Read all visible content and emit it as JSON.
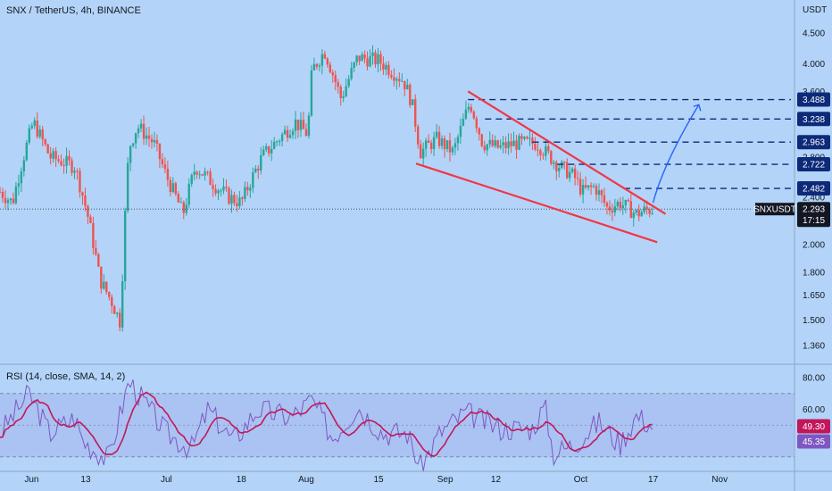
{
  "header": {
    "title": "SNX / TetherUS, 4h, BINANCE",
    "rsi_title": "RSI (14, close, SMA, 14, 2)"
  },
  "price_axis_unit": "USDT",
  "colors": {
    "background": "#b3d4f8",
    "up_candle": "#26a69a",
    "down_candle": "#ef5350",
    "wedge": "#f23645",
    "levels": "#0d2a7a",
    "projection": "#2962ff",
    "rsi_line": "#7e57c2",
    "rsi_ma": "#c2185b"
  },
  "chart_data": [
    {
      "type": "candlestick",
      "ylim": [
        1.3,
        4.8
      ],
      "y_scale": "log",
      "price_ticks": [
        "4.500",
        "4.000",
        "3.600",
        "3.200",
        "2.800",
        "2.400",
        "2.000",
        "1.800",
        "1.650",
        "1.500",
        "1.360"
      ],
      "time_ticks": [
        "Jun",
        "13",
        "Jul",
        "18",
        "Aug",
        "15",
        "Sep",
        "12",
        "Oct",
        "17",
        "Nov"
      ],
      "path_points": [
        {
          "t": 0,
          "p": 2.45
        },
        {
          "t": 0.015,
          "p": 2.35
        },
        {
          "t": 0.04,
          "p": 3.2
        },
        {
          "t": 0.06,
          "p": 2.8
        },
        {
          "t": 0.09,
          "p": 2.7
        },
        {
          "t": 0.105,
          "p": 2.25
        },
        {
          "t": 0.12,
          "p": 1.75
        },
        {
          "t": 0.135,
          "p": 1.6
        },
        {
          "t": 0.145,
          "p": 1.48
        },
        {
          "t": 0.155,
          "p": 2.9
        },
        {
          "t": 0.165,
          "p": 3.15
        },
        {
          "t": 0.185,
          "p": 2.95
        },
        {
          "t": 0.2,
          "p": 2.6
        },
        {
          "t": 0.22,
          "p": 2.25
        },
        {
          "t": 0.235,
          "p": 2.7
        },
        {
          "t": 0.26,
          "p": 2.5
        },
        {
          "t": 0.275,
          "p": 2.4
        },
        {
          "t": 0.29,
          "p": 2.35
        },
        {
          "t": 0.315,
          "p": 2.8
        },
        {
          "t": 0.335,
          "p": 3.0
        },
        {
          "t": 0.355,
          "p": 3.2
        },
        {
          "t": 0.37,
          "p": 3.05
        },
        {
          "t": 0.375,
          "p": 3.9
        },
        {
          "t": 0.39,
          "p": 4.2
        },
        {
          "t": 0.41,
          "p": 3.5
        },
        {
          "t": 0.43,
          "p": 4.1
        },
        {
          "t": 0.455,
          "p": 4.05
        },
        {
          "t": 0.47,
          "p": 3.9
        },
        {
          "t": 0.485,
          "p": 3.75
        },
        {
          "t": 0.495,
          "p": 3.45
        },
        {
          "t": 0.505,
          "p": 2.85
        },
        {
          "t": 0.525,
          "p": 3.0
        },
        {
          "t": 0.545,
          "p": 2.85
        },
        {
          "t": 0.565,
          "p": 3.45
        },
        {
          "t": 0.58,
          "p": 2.95
        },
        {
          "t": 0.6,
          "p": 2.9
        },
        {
          "t": 0.62,
          "p": 2.95
        },
        {
          "t": 0.645,
          "p": 2.95
        },
        {
          "t": 0.67,
          "p": 2.72
        },
        {
          "t": 0.69,
          "p": 2.6
        },
        {
          "t": 0.7,
          "p": 2.45
        },
        {
          "t": 0.715,
          "p": 2.5
        },
        {
          "t": 0.73,
          "p": 2.3
        },
        {
          "t": 0.745,
          "p": 2.35
        },
        {
          "t": 0.765,
          "p": 2.25
        },
        {
          "t": 0.775,
          "p": 2.28
        },
        {
          "t": 0.785,
          "p": 2.293
        }
      ],
      "levels": [
        3.488,
        3.238,
        2.963,
        2.722,
        2.482
      ],
      "level_labels": [
        "3.488",
        "3.238",
        "2.963",
        "2.722",
        "2.482"
      ],
      "last_price": {
        "symbol": "SNXUSDT",
        "value": "2.293",
        "countdown": "17:15"
      },
      "wedge_upper": [
        {
          "t": 0.5625,
          "p": 3.6
        },
        {
          "t": 0.8,
          "p": 2.25
        }
      ],
      "wedge_lower": [
        {
          "t": 0.5,
          "p": 2.73
        },
        {
          "t": 0.79,
          "p": 2.02
        }
      ],
      "projection": [
        {
          "t": 0.785,
          "p": 2.35
        },
        {
          "t": 0.84,
          "p": 3.42
        }
      ]
    },
    {
      "type": "line",
      "name": "RSI",
      "ylim": [
        20,
        85
      ],
      "tick_labels": [
        "80.00",
        "60.00",
        "40.00"
      ],
      "band": [
        30,
        70
      ],
      "midline": 50,
      "rsi_value": "49.30",
      "ma_value": "45.35",
      "rsi_points": [
        {
          "t": 0,
          "v": 45
        },
        {
          "t": 0.035,
          "v": 70
        },
        {
          "t": 0.06,
          "v": 45
        },
        {
          "t": 0.09,
          "v": 55
        },
        {
          "t": 0.1,
          "v": 40
        },
        {
          "t": 0.13,
          "v": 28
        },
        {
          "t": 0.155,
          "v": 78
        },
        {
          "t": 0.2,
          "v": 45
        },
        {
          "t": 0.23,
          "v": 35
        },
        {
          "t": 0.25,
          "v": 60
        },
        {
          "t": 0.28,
          "v": 40
        },
        {
          "t": 0.31,
          "v": 60
        },
        {
          "t": 0.35,
          "v": 55
        },
        {
          "t": 0.375,
          "v": 66
        },
        {
          "t": 0.4,
          "v": 42
        },
        {
          "t": 0.43,
          "v": 62
        },
        {
          "t": 0.46,
          "v": 45
        },
        {
          "t": 0.49,
          "v": 45
        },
        {
          "t": 0.505,
          "v": 23
        },
        {
          "t": 0.53,
          "v": 46
        },
        {
          "t": 0.56,
          "v": 58
        },
        {
          "t": 0.6,
          "v": 48
        },
        {
          "t": 0.64,
          "v": 48
        },
        {
          "t": 0.655,
          "v": 62
        },
        {
          "t": 0.665,
          "v": 32
        },
        {
          "t": 0.69,
          "v": 38
        },
        {
          "t": 0.72,
          "v": 52
        },
        {
          "t": 0.745,
          "v": 38
        },
        {
          "t": 0.765,
          "v": 56
        },
        {
          "t": 0.785,
          "v": 49.3
        }
      ]
    }
  ]
}
